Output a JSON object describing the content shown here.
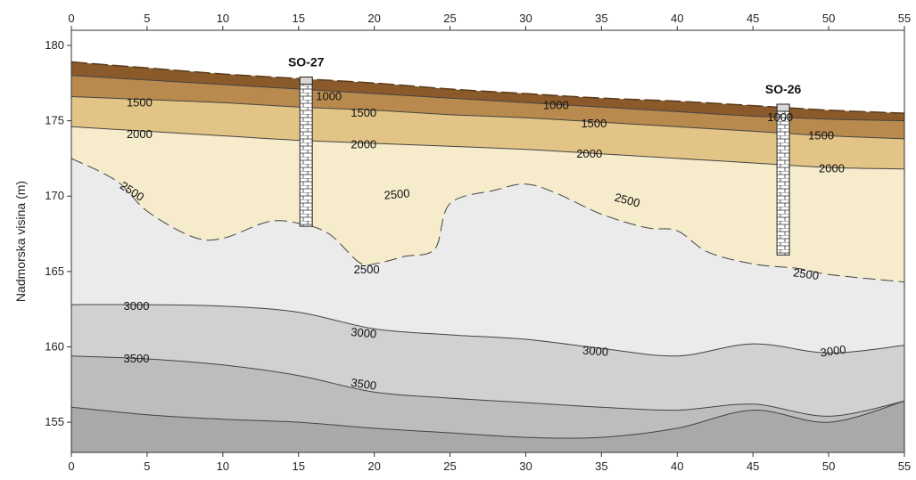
{
  "chart_data": {
    "type": "contour",
    "title": "",
    "xlabel": "",
    "ylabel": "Nadmorska visina (m)",
    "xlim": [
      0,
      55
    ],
    "ylim": [
      153,
      181
    ],
    "x_ticks": [
      0,
      5,
      10,
      15,
      20,
      25,
      30,
      35,
      40,
      45,
      50,
      55
    ],
    "y_ticks": [
      155,
      160,
      165,
      170,
      175,
      180
    ],
    "colors": {
      "surface": "#8b5a2b",
      "band_0_1000": "#b98a4e",
      "band_1000_1500": "#e2c486",
      "band_1500_2000": "#f6eccb",
      "band_2000_2500": "#ebebeb",
      "band_2500_3000": "#d1d1d1",
      "band_3000_3500": "#bdbdbd",
      "band_3500_4000": "#a9a9a9",
      "band_deep": "#8e8e8e"
    },
    "surface_profile": {
      "x": [
        0,
        5,
        10,
        15,
        20,
        25,
        30,
        35,
        40,
        45,
        50,
        55
      ],
      "y": [
        178.9,
        178.5,
        178.1,
        177.8,
        177.5,
        177.1,
        176.8,
        176.5,
        176.3,
        176.0,
        175.7,
        175.5
      ]
    },
    "contours": [
      {
        "level": 1000,
        "x": [
          0,
          5,
          10,
          15,
          20,
          25,
          30,
          35,
          40,
          45,
          50,
          55
        ],
        "y": [
          178.0,
          177.7,
          177.4,
          177.1,
          176.8,
          176.5,
          176.2,
          175.9,
          175.6,
          175.3,
          175.1,
          175.0
        ]
      },
      {
        "level": 1500,
        "x": [
          0,
          5,
          10,
          15,
          20,
          25,
          30,
          35,
          40,
          45,
          50,
          55
        ],
        "y": [
          176.6,
          176.4,
          176.2,
          175.9,
          175.7,
          175.4,
          175.2,
          174.9,
          174.6,
          174.3,
          174.0,
          173.8
        ]
      },
      {
        "level": 2000,
        "x": [
          0,
          5,
          10,
          15,
          20,
          25,
          30,
          35,
          40,
          45,
          50,
          55
        ],
        "y": [
          174.6,
          174.3,
          174.0,
          173.7,
          173.5,
          173.3,
          173.1,
          172.8,
          172.5,
          172.2,
          171.9,
          171.8
        ]
      },
      {
        "level": 2500,
        "x": [
          0,
          3,
          5,
          8,
          10,
          13,
          15,
          17,
          19,
          20,
          22,
          24,
          25,
          28,
          30,
          32,
          35,
          38,
          40,
          42,
          45,
          48,
          50,
          55
        ],
        "y": [
          172.5,
          171.0,
          169.0,
          167.3,
          167.2,
          168.3,
          168.2,
          167.5,
          165.6,
          165.5,
          166.0,
          166.5,
          169.5,
          170.4,
          170.8,
          170.2,
          168.8,
          167.9,
          167.7,
          166.3,
          165.5,
          165.2,
          164.8,
          164.3
        ]
      },
      {
        "level": 3000,
        "x": [
          0,
          5,
          10,
          15,
          20,
          25,
          30,
          35,
          40,
          45,
          50,
          55
        ],
        "y": [
          162.8,
          162.8,
          162.7,
          162.3,
          161.2,
          160.8,
          160.5,
          159.9,
          159.4,
          160.2,
          159.6,
          160.1
        ]
      },
      {
        "level": 3500,
        "x": [
          0,
          5,
          10,
          15,
          20,
          25,
          30,
          35,
          40,
          45,
          50,
          55
        ],
        "y": [
          159.4,
          159.2,
          158.8,
          158.1,
          157.0,
          156.6,
          156.3,
          156.0,
          155.8,
          156.2,
          155.4,
          156.4
        ]
      },
      {
        "level": 4000,
        "x": [
          0,
          5,
          10,
          15,
          20,
          25,
          30,
          35,
          40,
          45,
          50,
          55
        ],
        "y": [
          156.0,
          155.5,
          155.2,
          155.0,
          154.6,
          154.3,
          154.0,
          154.0,
          154.6,
          155.8,
          155.0,
          156.4
        ]
      }
    ],
    "contour_labels": [
      {
        "text": "1000",
        "x": 17.0,
        "y": 176.6
      },
      {
        "text": "1500",
        "x": 4.5,
        "y": 176.2
      },
      {
        "text": "1500",
        "x": 19.3,
        "y": 175.5
      },
      {
        "text": "2000",
        "x": 4.5,
        "y": 174.1
      },
      {
        "text": "2000",
        "x": 19.3,
        "y": 173.4
      },
      {
        "text": "1000",
        "x": 32.0,
        "y": 176.0
      },
      {
        "text": "1500",
        "x": 34.5,
        "y": 174.8
      },
      {
        "text": "2000",
        "x": 34.2,
        "y": 172.8
      },
      {
        "text": "1000",
        "x": 46.8,
        "y": 175.2
      },
      {
        "text": "1500",
        "x": 49.5,
        "y": 174.0
      },
      {
        "text": "2000",
        "x": 50.2,
        "y": 171.8
      },
      {
        "text": "2500",
        "x": 4.0,
        "y": 170.3,
        "angle": 33
      },
      {
        "text": "2500",
        "x": 21.5,
        "y": 170.1,
        "angle": -5
      },
      {
        "text": "2500",
        "x": 36.7,
        "y": 169.7,
        "angle": 15
      },
      {
        "text": "2500",
        "x": 19.5,
        "y": 165.1
      },
      {
        "text": "2500",
        "x": 48.5,
        "y": 164.8,
        "angle": 8
      },
      {
        "text": "3000",
        "x": 4.3,
        "y": 162.7
      },
      {
        "text": "3000",
        "x": 19.3,
        "y": 160.9,
        "angle": 5
      },
      {
        "text": "3000",
        "x": 34.6,
        "y": 159.7,
        "angle": 4
      },
      {
        "text": "3000",
        "x": 50.3,
        "y": 159.7,
        "angle": -8
      },
      {
        "text": "3500",
        "x": 4.3,
        "y": 159.2
      },
      {
        "text": "3500",
        "x": 19.3,
        "y": 157.5,
        "angle": 8
      }
    ],
    "boreholes": [
      {
        "name": "SO-27",
        "x": 15.5,
        "top": 177.9,
        "bottom": 168.0
      },
      {
        "name": "SO-26",
        "x": 47.0,
        "top": 176.1,
        "bottom": 166.1
      }
    ]
  }
}
